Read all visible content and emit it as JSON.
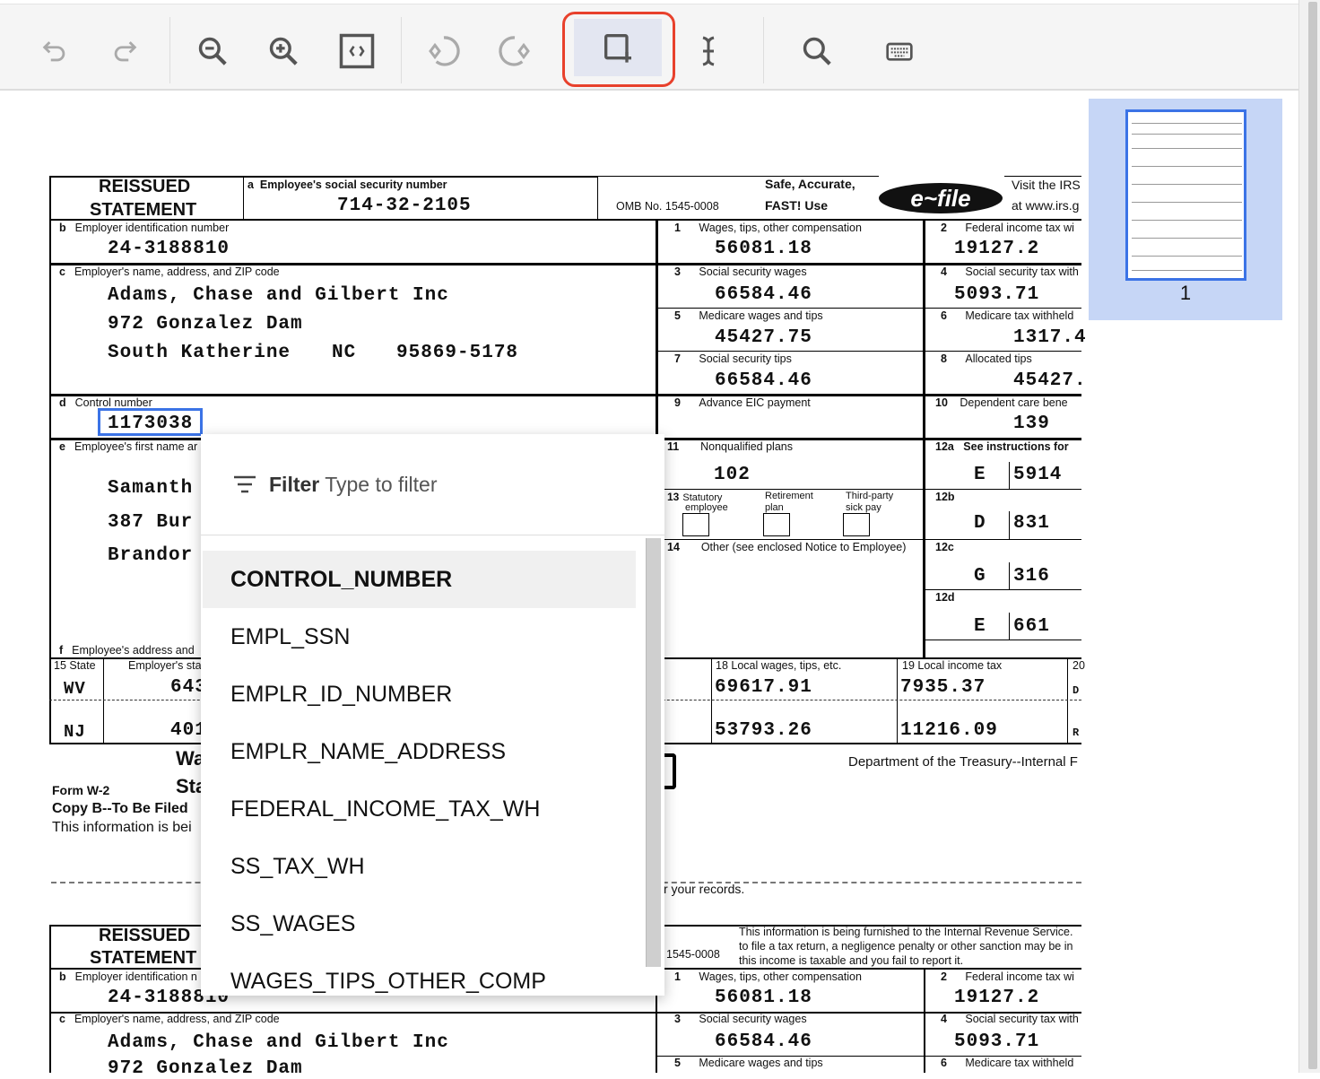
{
  "toolbar": {
    "buttons": [
      {
        "name": "undo",
        "icon": "undo-icon",
        "enabled": false
      },
      {
        "name": "redo",
        "icon": "redo-icon",
        "enabled": false
      },
      {
        "name": "zoom-out",
        "icon": "zoom-out-icon",
        "enabled": true
      },
      {
        "name": "zoom-in",
        "icon": "zoom-in-icon",
        "enabled": true
      },
      {
        "name": "fit-page",
        "icon": "fit-page-icon",
        "enabled": true
      },
      {
        "name": "rotate-left",
        "icon": "rotate-left-icon",
        "enabled": false
      },
      {
        "name": "rotate-right",
        "icon": "rotate-right-icon",
        "enabled": false
      },
      {
        "name": "add-bounding-box",
        "icon": "add-box-icon",
        "enabled": true,
        "active": true
      },
      {
        "name": "text-cursor",
        "icon": "text-cursor-icon",
        "enabled": true
      },
      {
        "name": "search",
        "icon": "search-icon",
        "enabled": true
      },
      {
        "name": "keyboard",
        "icon": "keyboard-icon",
        "enabled": true
      }
    ],
    "highlight_color": "#e8412c"
  },
  "thumbnails": {
    "page_number": "1",
    "active_color": "#3b73e6",
    "panel_color": "#c6d6f6"
  },
  "form": {
    "reissued": "REISSUED",
    "statement": "STATEMENT",
    "a_letter": "a",
    "a_label": "Employee's social security number",
    "ssn": "714-32-2105",
    "omb": "OMB No. 1545-0008",
    "safe": "Safe, Accurate,",
    "fast": "FAST!  Use",
    "efile_logo": "IRS e-file",
    "visit1": "Visit the IRS",
    "visit2": "at www.irs.g",
    "b_letter": "b",
    "b_label": "Employer identification number",
    "ein": "24-3188810",
    "c_letter": "c",
    "c_label": "Employer's name, address, and ZIP code",
    "employer_name": "Adams, Chase and Gilbert Inc",
    "employer_street": "972 Gonzalez Dam",
    "employer_city": "South Katherine",
    "employer_state": "NC",
    "employer_zip": "95869-5178",
    "d_letter": "d",
    "d_label": "Control number",
    "control_number": "1173038",
    "e_letter": "e",
    "e_label": "Employee's first name ar",
    "employee_name": "Samanth",
    "employee_street": "387 Bur",
    "employee_city": "Brandor",
    "f_letter": "f",
    "f_label": "Employee's address and",
    "boxes": {
      "b1": {
        "num": "1",
        "label": "Wages, tips, other compensation",
        "value": "56081.18"
      },
      "b2": {
        "num": "2",
        "label": "Federal income tax wi",
        "value": "19127.2"
      },
      "b3": {
        "num": "3",
        "label": "Social security wages",
        "value": "66584.46"
      },
      "b4": {
        "num": "4",
        "label": "Social security tax with",
        "value": "5093.71"
      },
      "b5": {
        "num": "5",
        "label": "Medicare wages and tips",
        "value": "45427.75"
      },
      "b6": {
        "num": "6",
        "label": "Medicare tax withheld",
        "value": "1317.4"
      },
      "b7": {
        "num": "7",
        "label": "Social security tips",
        "value": "66584.46"
      },
      "b8": {
        "num": "8",
        "label": "Allocated tips",
        "value": "45427."
      },
      "b9": {
        "num": "9",
        "label": "Advance EIC payment",
        "value": ""
      },
      "b10": {
        "num": "10",
        "label": "Dependent care bene",
        "value": "139"
      },
      "b11": {
        "num": "11",
        "label": "Nonqualified plans",
        "value": "102"
      },
      "b12a": {
        "num": "12a",
        "label": "See instructions for",
        "code": "E",
        "value": "5914"
      },
      "b12b": {
        "num": "12b",
        "code": "D",
        "value": "831"
      },
      "b12c": {
        "num": "12c",
        "code": "G",
        "value": "316"
      },
      "b12d": {
        "num": "12d",
        "code": "E",
        "value": "661"
      },
      "b13": {
        "num": "13",
        "statutory": "Statutory",
        "employee": "employee",
        "retirement": "Retirement",
        "plan": "plan",
        "thirdparty": "Third-party",
        "sickpay": "sick pay"
      },
      "b14": {
        "num": "14",
        "label": "Other (see enclosed Notice to Employee)"
      }
    },
    "state_table": {
      "state_label": "15  State",
      "employer_state_id_label": "Employer's sta",
      "local_wages_label": "18  Local wages, tips, etc.",
      "local_tax_label": "19  Local income tax",
      "col20_label": "20",
      "rows": [
        {
          "state": "WV",
          "state_id": "643",
          "local_wages": "69617.91",
          "local_tax": "7935.37",
          "locality": "D"
        },
        {
          "state": "NJ",
          "state_id": "401",
          "local_wages": "53793.26",
          "local_tax": "11216.09",
          "locality": "R"
        }
      ]
    },
    "title_wa": "Wa",
    "title_sta": "Sta",
    "form_w2": "Form  W-2",
    "copy_b": "Copy B--To Be Filed",
    "info_text": "This information is bei",
    "dept": "Department of the Treasury--Internal F",
    "records": "r your records.",
    "second": {
      "reissued": "REISSUED",
      "statement": "STATEMENT",
      "omb": "1545-0008",
      "notice1": "This information is being furnished to the Internal Revenue Service.",
      "notice2": "to file a tax return, a negligence penalty or other sanction may be in",
      "notice3": "this income is taxable and you fail to report it.",
      "b_label": "Employer identification n",
      "ein": "24-3188810",
      "c_label": "Employer's name, address, and ZIP code",
      "employer_name": "Adams, Chase and Gilbert Inc",
      "employer_street": "972 Gonzalez Dam",
      "b1_label": "Wages, tips, other compensation",
      "b1": "56081.18",
      "b2_label": "Federal income tax wi",
      "b2": "19127.2",
      "b3_label": "Social security wages",
      "b3": "66584.46",
      "b4_label": "Social security tax with",
      "b4": "5093.71",
      "b5_label": "Medicare wages and tips",
      "b6_label": "Medicare tax withheld"
    }
  },
  "dropdown": {
    "filter_label": "Filter",
    "filter_placeholder": "Type to filter",
    "items": [
      "CONTROL_NUMBER",
      "EMPL_SSN",
      "EMPLR_ID_NUMBER",
      "EMPLR_NAME_ADDRESS",
      "FEDERAL_INCOME_TAX_WH",
      "SS_TAX_WH",
      "SS_WAGES",
      "WAGES_TIPS_OTHER_COMP"
    ],
    "selected": "CONTROL_NUMBER"
  }
}
